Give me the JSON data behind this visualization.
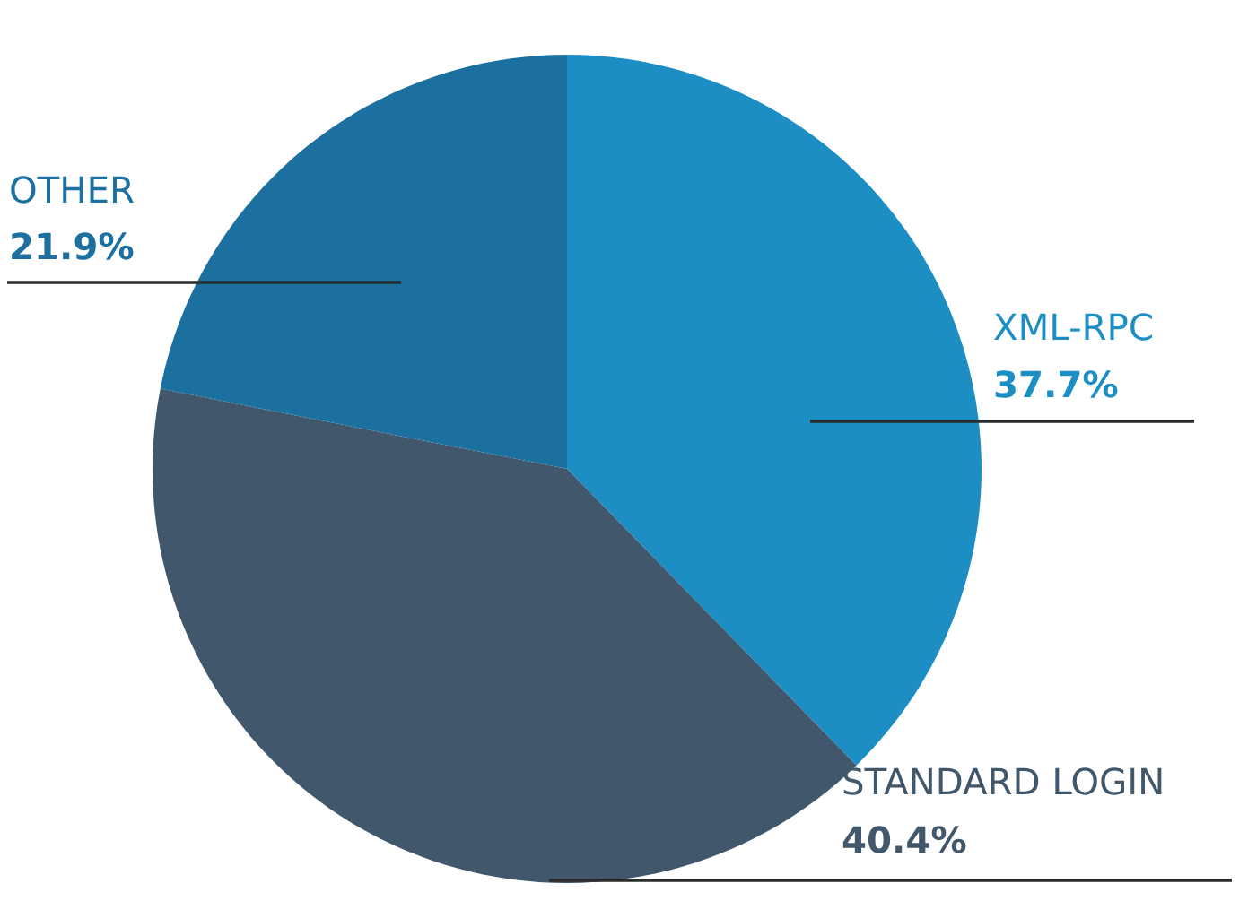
{
  "chart_data": {
    "type": "pie",
    "categories": [
      "XML-RPC",
      "STANDARD LOGIN",
      "OTHER"
    ],
    "values": [
      37.7,
      40.4,
      21.9
    ],
    "value_labels": [
      "37.7%",
      "40.4%",
      "21.9%"
    ],
    "colors": [
      "#1d8ec4",
      "#41576b",
      "#1b70a0"
    ],
    "legend": false
  }
}
